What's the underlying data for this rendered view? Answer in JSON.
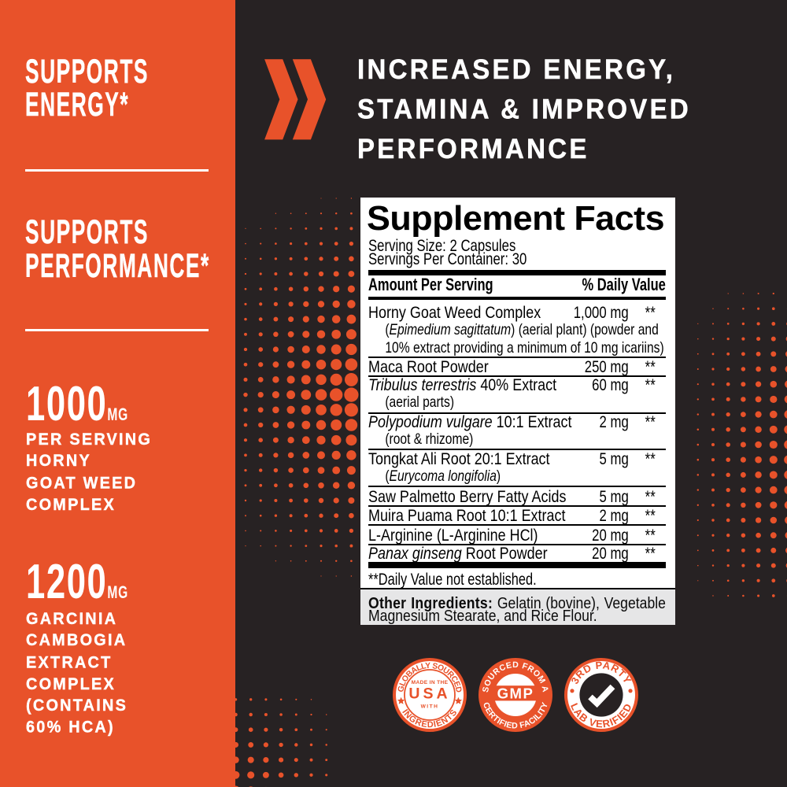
{
  "colors": {
    "orange": "#E8522A",
    "dark_background": "#272223",
    "white": "#FFFFFF",
    "black": "#000000",
    "gray_box": "#E6E6E7"
  },
  "left_panel": {
    "claims": [
      {
        "lines": "SUPPORTS\nENERGY*"
      },
      {
        "lines": "SUPPORTS\nPERFORMANCE*"
      }
    ],
    "stats": [
      {
        "value": "1000",
        "unit": "MG",
        "lines": "PER SERVING\nHORNY\nGOAT WEED\nCOMPLEX"
      },
      {
        "value": "1200",
        "unit": "MG",
        "lines": "GARCINIA\nCAMBOGIA\nEXTRACT\nCOMPLEX\n(CONTAINS\n60% HCA)"
      }
    ]
  },
  "headline": {
    "lines": "INCREASED ENERGY,\nSTAMINA & IMPROVED\nPERFORMANCE"
  },
  "supplement_facts": {
    "title": "Supplement Facts",
    "serving_size": "Serving Size: 2 Capsules",
    "servings_per_container": "Servings Per Container: 30",
    "amount_header": "Amount Per Serving",
    "dv_header": "% Daily Value",
    "rows": [
      {
        "name": [
          [
            "Horny Goat Weed Complex",
            0
          ]
        ],
        "amount": "1,000 mg",
        "dv": "**",
        "sub": [
          [
            [
              "(",
              0
            ],
            [
              "Epimedium sagittatum",
              1
            ],
            [
              ") (aerial plant) (powder and",
              0
            ]
          ],
          [
            [
              "10% extract providing a minimum of 10 mg icariins)",
              0
            ]
          ]
        ]
      },
      {
        "name": [
          [
            "Maca Root Powder",
            0
          ]
        ],
        "amount": "250 mg",
        "dv": "**",
        "sub": []
      },
      {
        "name": [
          [
            "Tribulus terrestris",
            1
          ],
          [
            " 40% Extract",
            0
          ]
        ],
        "amount": "60 mg",
        "dv": "**",
        "sub": [
          [
            [
              "(aerial parts)",
              0
            ]
          ]
        ]
      },
      {
        "name": [
          [
            "Polypodium vulgare",
            1
          ],
          [
            " 10:1 Extract",
            0
          ]
        ],
        "amount": "2 mg",
        "dv": "**",
        "sub": [
          [
            [
              "(root & rhizome)",
              0
            ]
          ]
        ]
      },
      {
        "name": [
          [
            "Tongkat Ali Root 20:1 Extract",
            0
          ]
        ],
        "amount": "5 mg",
        "dv": "**",
        "sub": [
          [
            [
              "(",
              0
            ],
            [
              "Eurycoma longifolia",
              1
            ],
            [
              ")",
              0
            ]
          ]
        ]
      },
      {
        "name": [
          [
            "Saw Palmetto Berry Fatty Acids",
            0
          ]
        ],
        "amount": "5 mg",
        "dv": "**",
        "sub": []
      },
      {
        "name": [
          [
            "Muira Puama Root 10:1 Extract",
            0
          ]
        ],
        "amount": "2 mg",
        "dv": "**",
        "sub": []
      },
      {
        "name": [
          [
            "L-Arginine (L-Arginine HCl)",
            0
          ]
        ],
        "amount": "20 mg",
        "dv": "**",
        "sub": []
      },
      {
        "name": [
          [
            "Panax ginseng",
            1
          ],
          [
            " Root Powder",
            0
          ]
        ],
        "amount": "20 mg",
        "dv": "**",
        "sub": []
      }
    ],
    "footnote": "**Daily Value not established.",
    "other_ingredients_label": "Other Ingredients:",
    "other_ingredients_text": " Gelatin (bovine), Vegetable Magnesium Stearate, and Rice Flour."
  },
  "badges": [
    {
      "shape": "outline",
      "top_text": "GLOBALLY SOURCED",
      "bottom_text": "INGREDIENTS",
      "side_glyph": "star",
      "center_lines": [
        "MADE IN THE",
        "USA",
        "WITH"
      ]
    },
    {
      "shape": "filled",
      "top_text": "SOURCED FROM A",
      "bottom_text": "CERTIFIED FACILITY",
      "side_glyph": "none",
      "center_lines": [
        "GMP"
      ]
    },
    {
      "shape": "outline",
      "top_text": "3RD PARTY",
      "bottom_text": "LAB VERIFIED",
      "side_glyph": "dot",
      "center_lines": [
        "check"
      ]
    }
  ]
}
